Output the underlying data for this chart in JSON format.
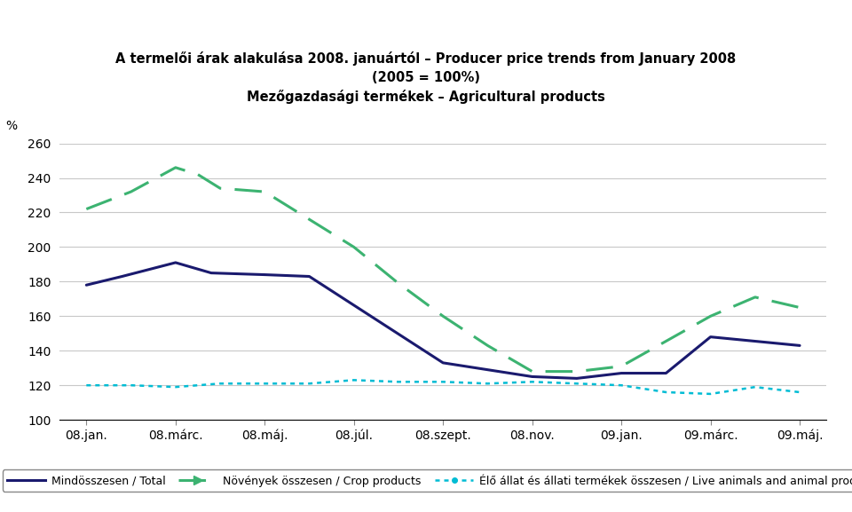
{
  "title_line1": "A termelői árak alakulása 2008. januártól – Producer price trends from January 2008",
  "title_line2": "(2005 = 100%)",
  "title_line3": "Mezőgazdasági termékek – Agricultural products",
  "ylabel": "%",
  "ylim": [
    100,
    260
  ],
  "yticks": [
    100,
    120,
    140,
    160,
    180,
    200,
    220,
    240,
    260
  ],
  "x_labels": [
    "08.jan.",
    "08.márc.",
    "08.máj.",
    "08.júl.",
    "08.szept.",
    "08.nov.",
    "09.jan.",
    "09.márc.",
    "09.máj."
  ],
  "total_x": [
    0,
    0.4,
    1.0,
    1.4,
    2.0,
    2.5,
    4.0,
    5.0,
    5.5,
    6.0,
    6.5,
    7.0,
    8.0
  ],
  "total_y": [
    178,
    183,
    191,
    185,
    184,
    183,
    133,
    125,
    124,
    127,
    127,
    148,
    143
  ],
  "crop_x": [
    0,
    0.5,
    1.0,
    1.25,
    1.5,
    2.0,
    3.0,
    3.5,
    4.0,
    4.5,
    5.0,
    5.5,
    6.0,
    7.0,
    7.5,
    8.0
  ],
  "crop_y": [
    222,
    232,
    246,
    242,
    234,
    232,
    200,
    179,
    160,
    143,
    128,
    128,
    131,
    160,
    171,
    165
  ],
  "live_x": [
    0,
    0.5,
    1.0,
    1.5,
    2.0,
    2.5,
    3.0,
    3.5,
    4.0,
    4.5,
    5.0,
    5.5,
    6.0,
    6.5,
    7.0,
    7.5,
    8.0
  ],
  "live_y": [
    120,
    120,
    119,
    121,
    121,
    121,
    123,
    122,
    122,
    121,
    122,
    121,
    120,
    116,
    115,
    119,
    116
  ],
  "total_color": "#1a1a6e",
  "crop_color": "#3cb371",
  "live_color": "#00bcd4",
  "background_color": "#ffffff",
  "grid_color": "#c8c8c8",
  "legend_total": "Mindösszesen / Total",
  "legend_crop": "Növények összesen / Crop products",
  "legend_live": "Élő állat és állati termékek összesen / Live animals and animal products",
  "title_fontsize": 10.5,
  "tick_fontsize": 10,
  "legend_fontsize": 9
}
